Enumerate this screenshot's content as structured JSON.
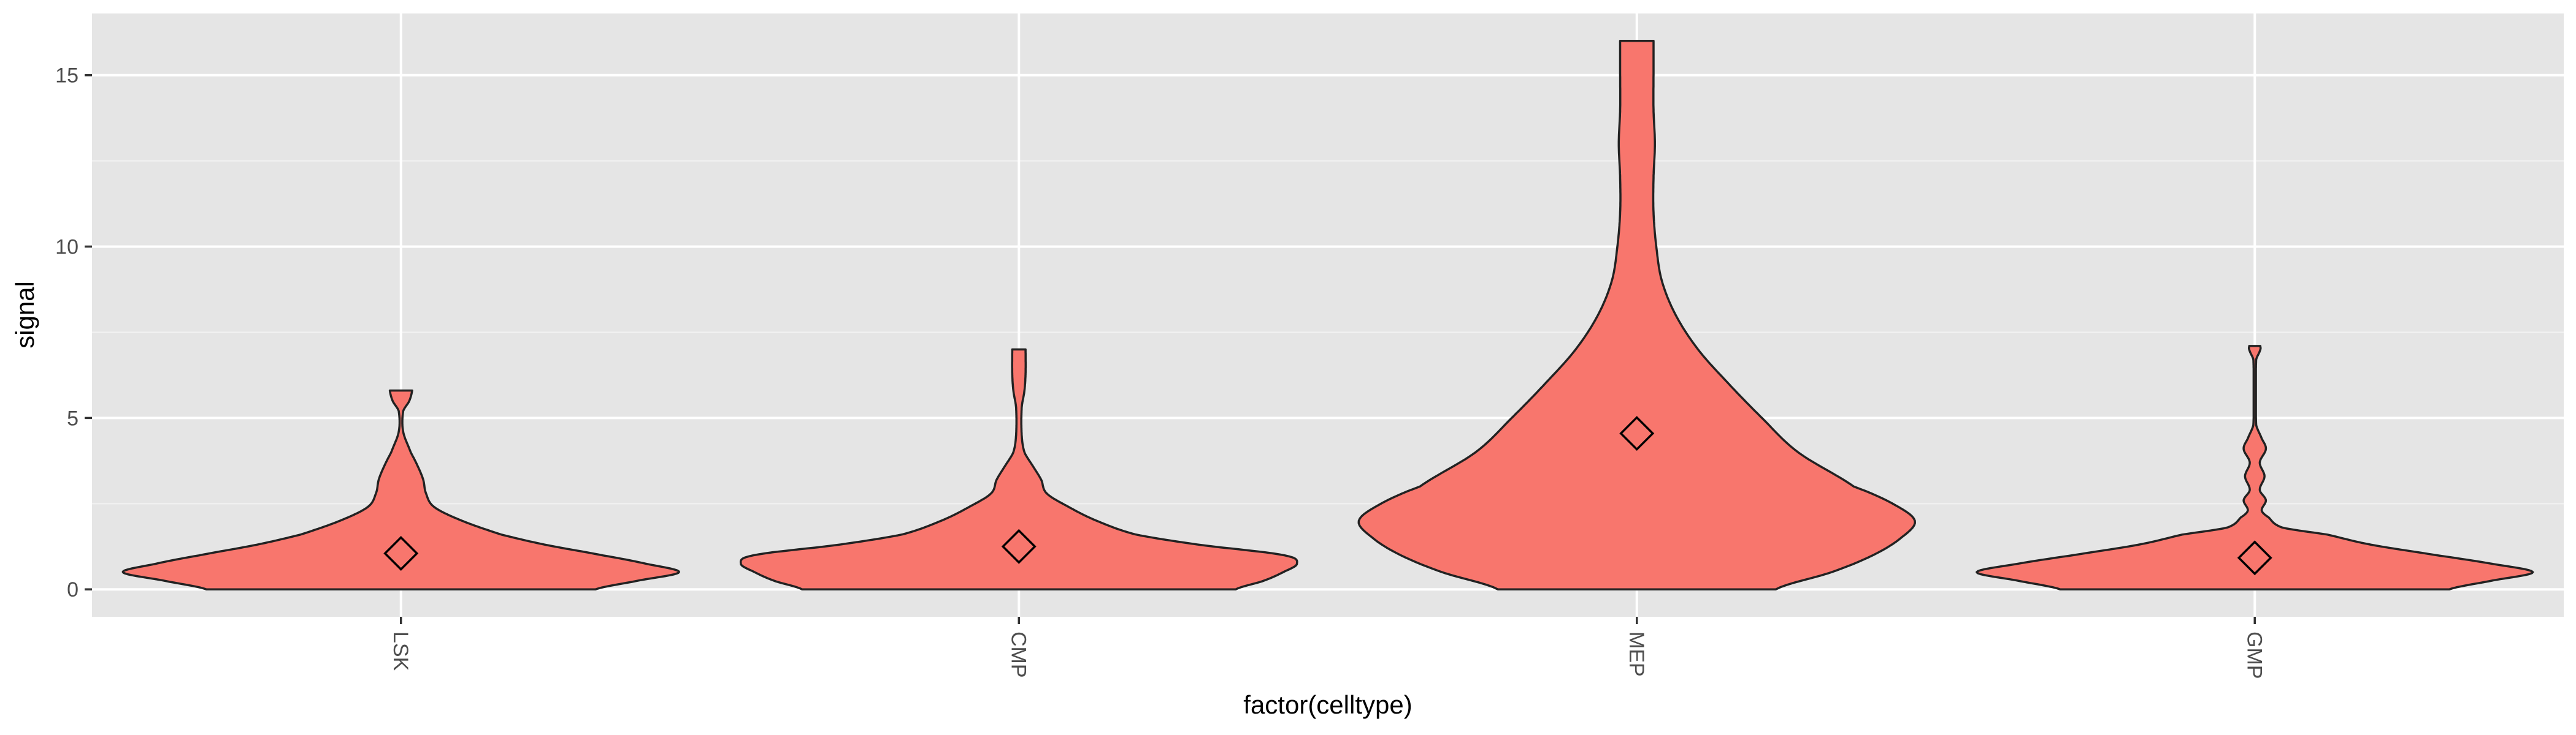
{
  "chart_data": {
    "type": "violin",
    "xlabel": "factor(celltype)",
    "ylabel": "signal",
    "categories": [
      "LSK",
      "CMP",
      "MEP",
      "GMP"
    ],
    "y_ticks": [
      0,
      5,
      10,
      15
    ],
    "ylim": [
      -0.8,
      16.8
    ],
    "grid": true,
    "fill_color": "#F8766D",
    "panel_color": "#E5E5E5",
    "series": [
      {
        "category": "LSK",
        "mean": 1.05,
        "profile": [
          [
            0,
            0.7
          ],
          [
            0.25,
            0.85
          ],
          [
            0.5,
            1.0
          ],
          [
            0.75,
            0.88
          ],
          [
            1.0,
            0.72
          ],
          [
            1.3,
            0.52
          ],
          [
            1.6,
            0.36
          ],
          [
            2.0,
            0.22
          ],
          [
            2.4,
            0.12
          ],
          [
            2.8,
            0.09
          ],
          [
            3.2,
            0.08
          ],
          [
            3.6,
            0.06
          ],
          [
            4.0,
            0.035
          ],
          [
            4.6,
            0.008
          ],
          [
            5.2,
            0.008
          ],
          [
            5.5,
            0.03
          ],
          [
            5.8,
            0.04
          ]
        ]
      },
      {
        "category": "CMP",
        "mean": 1.25,
        "profile": [
          [
            0,
            0.78
          ],
          [
            0.25,
            0.88
          ],
          [
            0.5,
            0.95
          ],
          [
            0.75,
            1.0
          ],
          [
            1.0,
            0.95
          ],
          [
            1.3,
            0.65
          ],
          [
            1.6,
            0.42
          ],
          [
            2.0,
            0.28
          ],
          [
            2.4,
            0.18
          ],
          [
            2.8,
            0.1
          ],
          [
            3.2,
            0.08
          ],
          [
            3.6,
            0.05
          ],
          [
            4.0,
            0.02
          ],
          [
            4.5,
            0.01
          ],
          [
            5.3,
            0.01
          ],
          [
            5.8,
            0.02
          ],
          [
            6.3,
            0.024
          ],
          [
            7.0,
            0.024
          ]
        ]
      },
      {
        "category": "MEP",
        "mean": 4.55,
        "profile": [
          [
            0,
            0.5
          ],
          [
            0.5,
            0.7
          ],
          [
            1.0,
            0.85
          ],
          [
            1.5,
            0.95
          ],
          [
            2.0,
            1.0
          ],
          [
            2.5,
            0.92
          ],
          [
            3.0,
            0.78
          ],
          [
            4.0,
            0.58
          ],
          [
            5.0,
            0.45
          ],
          [
            6.0,
            0.33
          ],
          [
            7.0,
            0.22
          ],
          [
            8.0,
            0.14
          ],
          [
            9.0,
            0.09
          ],
          [
            10.0,
            0.07
          ],
          [
            11.0,
            0.06
          ],
          [
            12.0,
            0.06
          ],
          [
            13.0,
            0.065
          ],
          [
            14.0,
            0.06
          ],
          [
            15.0,
            0.06
          ],
          [
            16.0,
            0.06
          ]
        ]
      },
      {
        "category": "GMP",
        "mean": 0.92,
        "profile": [
          [
            0,
            0.7
          ],
          [
            0.25,
            0.85
          ],
          [
            0.5,
            1.0
          ],
          [
            0.75,
            0.85
          ],
          [
            1.0,
            0.65
          ],
          [
            1.3,
            0.42
          ],
          [
            1.6,
            0.26
          ],
          [
            1.8,
            0.1
          ],
          [
            2.1,
            0.05
          ],
          [
            2.3,
            0.025
          ],
          [
            2.6,
            0.04
          ],
          [
            2.9,
            0.018
          ],
          [
            3.3,
            0.035
          ],
          [
            3.7,
            0.018
          ],
          [
            4.1,
            0.04
          ],
          [
            4.4,
            0.025
          ],
          [
            4.8,
            0.005
          ],
          [
            6.7,
            0.005
          ],
          [
            7.0,
            0.02
          ],
          [
            7.1,
            0.02
          ]
        ]
      }
    ]
  }
}
